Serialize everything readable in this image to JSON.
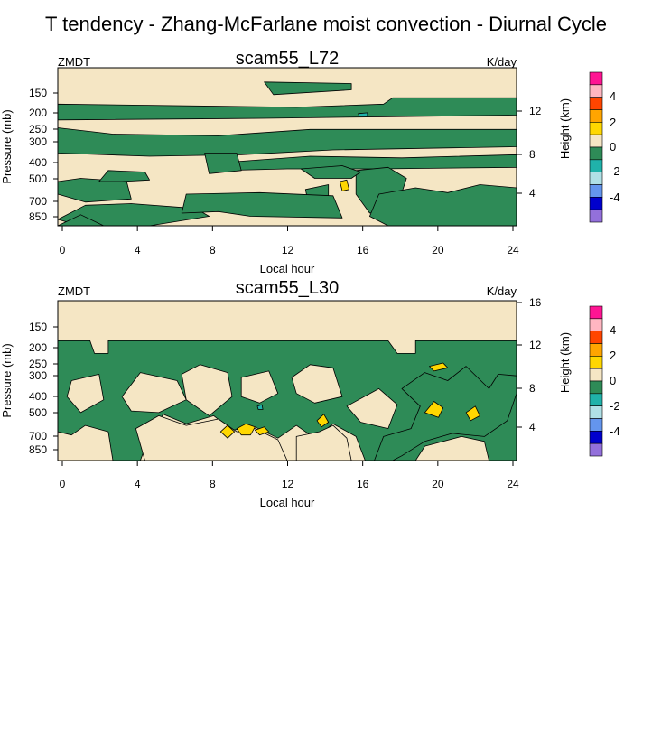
{
  "figure": {
    "title": "T tendency - Zhang-McFarlane moist convection - Diurnal Cycle"
  },
  "colors": {
    "background_fill": "#f5e6c4",
    "negative_fill": "#2e8b57",
    "positive_fill": "#ffd700",
    "small_negative_fill": "#20b2aa"
  },
  "chart_data": [
    {
      "type": "heatmap",
      "title": "scam55_L72",
      "left_label": "ZMDT",
      "right_label": "K/day",
      "xlabel": "Local hour",
      "ylabel": "Pressure (mb)",
      "y2label": "Height (km)",
      "xlim": [
        0,
        24
      ],
      "x_ticks": [
        "0",
        "4",
        "8",
        "12",
        "16",
        "20",
        "24"
      ],
      "y_ticks": [
        "150",
        "200",
        "250",
        "300",
        "400",
        "500",
        "700",
        "850"
      ],
      "y2_ticks": [
        "12",
        "8",
        "4"
      ],
      "legend_position": "right",
      "colorbar": {
        "labels": [
          "4",
          "2",
          "0",
          "-2",
          "-4"
        ],
        "colors": [
          "#ff1493",
          "#ffb6c1",
          "#ff4500",
          "#ffa500",
          "#ffd700",
          "#f5e6c4",
          "#2e8b57",
          "#20b2aa",
          "#b0e0e6",
          "#6495ed",
          "#0000cd",
          "#9370db"
        ]
      }
    },
    {
      "type": "heatmap",
      "title": "scam55_L30",
      "left_label": "ZMDT",
      "right_label": "K/day",
      "xlabel": "Local hour",
      "ylabel": "Pressure (mb)",
      "y2label": "Height (km)",
      "xlim": [
        0,
        24
      ],
      "x_ticks": [
        "0",
        "4",
        "8",
        "12",
        "16",
        "20",
        "24"
      ],
      "y_ticks": [
        "150",
        "200",
        "250",
        "300",
        "400",
        "500",
        "700",
        "850"
      ],
      "y2_ticks": [
        "16",
        "12",
        "8",
        "4"
      ],
      "legend_position": "right",
      "colorbar": {
        "labels": [
          "4",
          "2",
          "0",
          "-2",
          "-4"
        ],
        "colors": [
          "#ff1493",
          "#ffb6c1",
          "#ff4500",
          "#ffa500",
          "#ffd700",
          "#f5e6c4",
          "#2e8b57",
          "#20b2aa",
          "#b0e0e6",
          "#6495ed",
          "#0000cd",
          "#9370db"
        ]
      }
    }
  ]
}
